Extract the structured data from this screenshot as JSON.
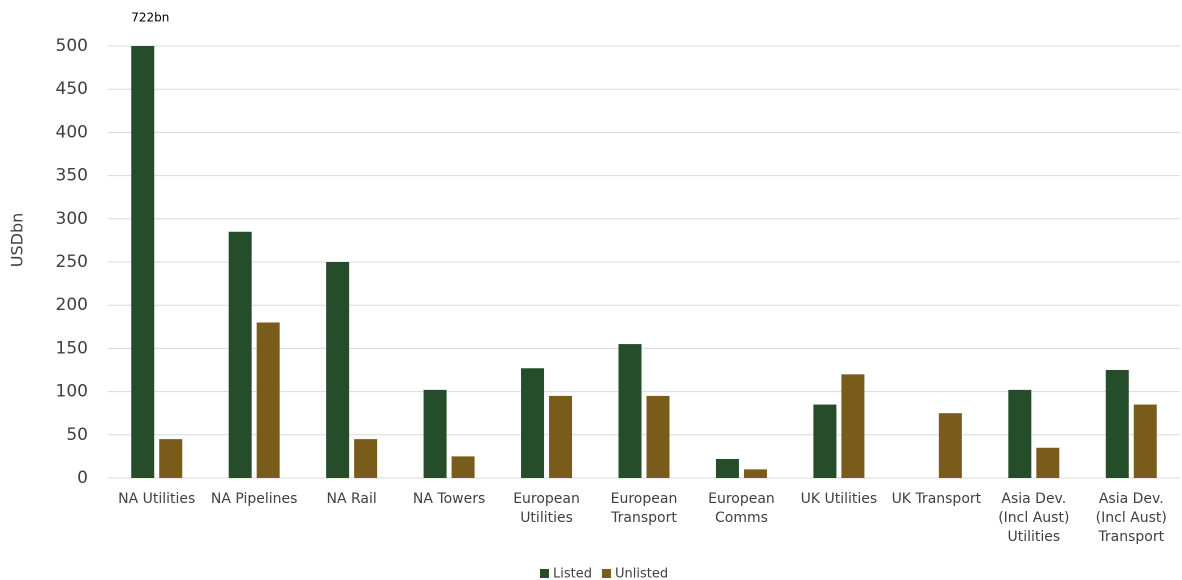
{
  "chart_data": {
    "type": "bar",
    "categories": [
      "NA Utilities",
      "NA Pipelines",
      "NA Rail",
      "NA Towers",
      "European Utilities",
      "European Transport",
      "European Comms",
      "UK Utilities",
      "UK Transport",
      "Asia Dev. (Incl Aust) Utilities",
      "Asia Dev. (Incl Aust) Transport"
    ],
    "series": [
      {
        "name": "Listed",
        "color": "#264d2a",
        "values": [
          722,
          285,
          250,
          102,
          127,
          155,
          22,
          85,
          null,
          102,
          125
        ],
        "value_labels": [
          "722bn",
          null,
          null,
          null,
          null,
          null,
          null,
          null,
          null,
          null,
          null
        ]
      },
      {
        "name": "Unlisted",
        "color": "#7a5c1a",
        "values": [
          45,
          180,
          45,
          25,
          95,
          95,
          10,
          120,
          75,
          35,
          85
        ]
      }
    ],
    "y_label": "USDbn",
    "ylim": [
      0,
      500
    ],
    "yticks": [
      0,
      50,
      100,
      150,
      200,
      250,
      300,
      350,
      400,
      450,
      500
    ],
    "grid": true,
    "legend": "bottom"
  }
}
